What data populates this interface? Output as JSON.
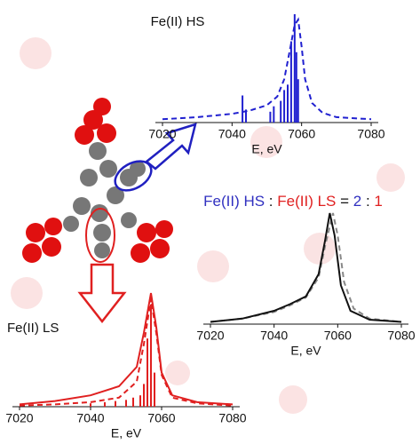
{
  "chart_data": [
    {
      "type": "line",
      "title": "Fe(II) HS",
      "title_color": "#3030c0",
      "xlabel": "E, eV",
      "xlim": [
        7020,
        7080
      ],
      "xticks": [
        7020,
        7040,
        7060,
        7080
      ],
      "series": [
        {
          "style": "dashed",
          "color": "#2020d0",
          "x": [
            7020,
            7030,
            7040,
            7045,
            7050,
            7053,
            7055,
            7056.5,
            7058,
            7059,
            7060,
            7061,
            7063,
            7066,
            7070,
            7080
          ],
          "values": [
            0.03,
            0.05,
            0.08,
            0.11,
            0.16,
            0.24,
            0.4,
            0.65,
            0.9,
            0.95,
            0.7,
            0.4,
            0.18,
            0.09,
            0.05,
            0.03
          ]
        },
        {
          "style": "sticks",
          "color": "#2020d0",
          "x": [
            7043,
            7044,
            7051,
            7052,
            7054,
            7055,
            7056,
            7057,
            7058,
            7058.5,
            7059
          ],
          "values": [
            0.25,
            0.12,
            0.1,
            0.15,
            0.2,
            0.3,
            0.35,
            0.75,
            1.0,
            0.65,
            0.4
          ]
        }
      ]
    },
    {
      "type": "line",
      "xlabel": "E, eV",
      "title_parts": [
        {
          "text": "Fe(II) HS",
          "color": "#3030c0"
        },
        {
          "text": ":",
          "color": "#111"
        },
        {
          "text": "Fe(II) LS",
          "color": "#e02020"
        },
        {
          "text": "=",
          "color": "#111"
        },
        {
          "text": "2",
          "color": "#3030c0"
        },
        {
          "text": ":",
          "color": "#111"
        },
        {
          "text": "1",
          "color": "#e02020"
        }
      ],
      "xlim": [
        7020,
        7080
      ],
      "xticks": [
        7020,
        7040,
        7060,
        7080
      ],
      "series": [
        {
          "style": "dashed",
          "color": "#888888",
          "x": [
            7020,
            7030,
            7040,
            7045,
            7050,
            7054,
            7056,
            7058.5,
            7060,
            7062,
            7065,
            7070,
            7080
          ],
          "values": [
            0.02,
            0.05,
            0.11,
            0.17,
            0.24,
            0.42,
            0.7,
            1.0,
            0.8,
            0.38,
            0.14,
            0.05,
            0.02
          ]
        },
        {
          "style": "solid",
          "color": "#111111",
          "x": [
            7020,
            7030,
            7040,
            7045,
            7050,
            7054,
            7056,
            7057.5,
            7059,
            7061,
            7064,
            7070,
            7080
          ],
          "values": [
            0.02,
            0.05,
            0.12,
            0.18,
            0.25,
            0.45,
            0.75,
            1.0,
            0.8,
            0.35,
            0.12,
            0.04,
            0.02
          ]
        }
      ]
    },
    {
      "type": "line",
      "title": "Fe(II) LS",
      "title_color": "#e02020",
      "xlabel": "E, eV",
      "xlim": [
        7020,
        7080
      ],
      "xticks": [
        7020,
        7040,
        7060,
        7080
      ],
      "series": [
        {
          "style": "solid",
          "color": "#e02020",
          "x": [
            7020,
            7030,
            7040,
            7048,
            7053,
            7055,
            7057,
            7058.5,
            7060,
            7063,
            7070,
            7080
          ],
          "values": [
            0.02,
            0.05,
            0.1,
            0.18,
            0.35,
            0.65,
            1.0,
            0.7,
            0.3,
            0.1,
            0.04,
            0.02
          ]
        },
        {
          "style": "dashed",
          "color": "#e02020",
          "x": [
            7020,
            7030,
            7040,
            7048,
            7053,
            7055,
            7057,
            7058.5,
            7060,
            7063,
            7070,
            7080
          ],
          "values": [
            0.01,
            0.02,
            0.04,
            0.08,
            0.22,
            0.55,
            0.95,
            0.65,
            0.28,
            0.08,
            0.03,
            0.01
          ]
        },
        {
          "style": "sticks",
          "color": "#e02020",
          "x": [
            7040,
            7044,
            7047,
            7050,
            7052,
            7054,
            7055,
            7056,
            7057,
            7058
          ],
          "values": [
            0.03,
            0.04,
            0.05,
            0.06,
            0.08,
            0.1,
            0.2,
            0.6,
            0.9,
            0.3
          ]
        }
      ]
    }
  ]
}
